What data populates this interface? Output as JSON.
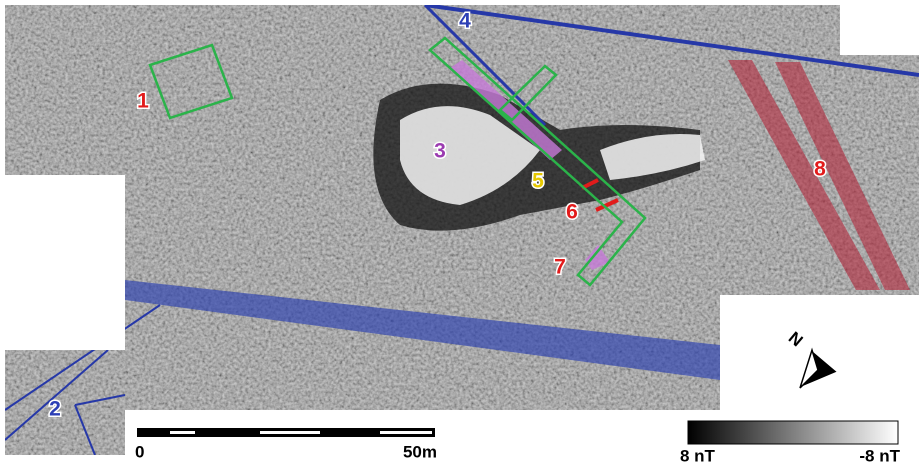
{
  "features": [
    {
      "label": "1"
    },
    {
      "label": "2"
    },
    {
      "label": "3"
    },
    {
      "label": "4"
    },
    {
      "label": "5"
    },
    {
      "label": "6"
    },
    {
      "label": "7"
    },
    {
      "label": "8"
    }
  ],
  "scale_bar": {
    "start": "0",
    "end": "50m"
  },
  "color_scale": {
    "min_label": "8 nT",
    "max_label": "-8 nT"
  },
  "north_arrow": {
    "label": "N"
  }
}
